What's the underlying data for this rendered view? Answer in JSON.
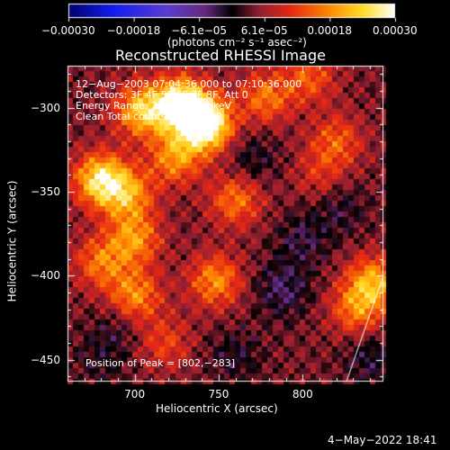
{
  "chart_data": {
    "type": "heatmap",
    "title": "Reconstructed RHESSI Image",
    "xlabel": "Heliocentric X (arcsec)",
    "ylabel": "Heliocentric Y (arcsec)",
    "xlim": [
      660,
      848
    ],
    "ylim": [
      -463,
      -275
    ],
    "x_ticks": [
      700,
      750,
      800
    ],
    "y_ticks": [
      -300,
      -350,
      -400,
      -450
    ],
    "x_tick_labels": [
      "700",
      "750",
      "800"
    ],
    "y_tick_labels": [
      "−300",
      "−350",
      "−400",
      "−450"
    ],
    "colorbar": {
      "range": [
        -0.0003,
        0.0003
      ],
      "tick_labels": [
        "−0.00030",
        "−0.00018",
        "−6.1e−05",
        "6.1e−05",
        "0.00018",
        "0.00030"
      ],
      "unit_label": "(photons cm⁻² s⁻¹ asec⁻²)"
    },
    "annotations": {
      "time": "12−Aug−2003 07:04:36.000 to 07:10:36.000",
      "detectors": "Detectors: 3F 4F 5F 6F 7F 8F, Att 0",
      "energy": "Energy Range: 25.0 − 50.0 keV",
      "clean": "Clean     Total counts: 5.21E+03",
      "peak": "Position of Peak = [802,−283]"
    },
    "intensity_blobs": [
      {
        "x": 742,
        "y": -310,
        "value": 0.0003
      },
      {
        "x": 727,
        "y": -298,
        "value": 0.00026
      },
      {
        "x": 704,
        "y": -302,
        "value": 0.00018
      },
      {
        "x": 724,
        "y": -330,
        "value": 0.00014
      },
      {
        "x": 680,
        "y": -343,
        "value": 0.00022
      },
      {
        "x": 696,
        "y": -352,
        "value": 0.00014
      },
      {
        "x": 700,
        "y": -378,
        "value": 0.00014
      },
      {
        "x": 778,
        "y": -294,
        "value": 0.00012
      },
      {
        "x": 804,
        "y": -282,
        "value": 0.0001
      },
      {
        "x": 820,
        "y": -320,
        "value": 0.0001
      },
      {
        "x": 760,
        "y": -355,
        "value": 0.00012
      },
      {
        "x": 748,
        "y": -403,
        "value": 0.00014
      },
      {
        "x": 700,
        "y": -412,
        "value": 0.00014
      },
      {
        "x": 680,
        "y": -392,
        "value": 0.00012
      },
      {
        "x": 718,
        "y": -440,
        "value": 8e-05
      },
      {
        "x": 842,
        "y": -404,
        "value": 0.00016
      },
      {
        "x": 832,
        "y": -420,
        "value": 0.00012
      },
      {
        "x": 800,
        "y": -378,
        "value": -6e-05
      },
      {
        "x": 788,
        "y": -408,
        "value": -8e-05
      },
      {
        "x": 822,
        "y": -360,
        "value": -5e-05
      },
      {
        "x": 840,
        "y": -450,
        "value": -6e-05
      },
      {
        "x": 760,
        "y": -448,
        "value": -5e-05
      },
      {
        "x": 680,
        "y": -450,
        "value": -4e-05
      },
      {
        "x": 690,
        "y": -430,
        "value": -4e-05
      },
      {
        "x": 770,
        "y": -330,
        "value": -5e-05
      },
      {
        "x": 810,
        "y": -340,
        "value": 6e-05
      }
    ]
  },
  "footer": {
    "timestamp": "4−May−2022 18:41"
  },
  "colors": {
    "background": "#000000",
    "text": "#ffffff"
  }
}
